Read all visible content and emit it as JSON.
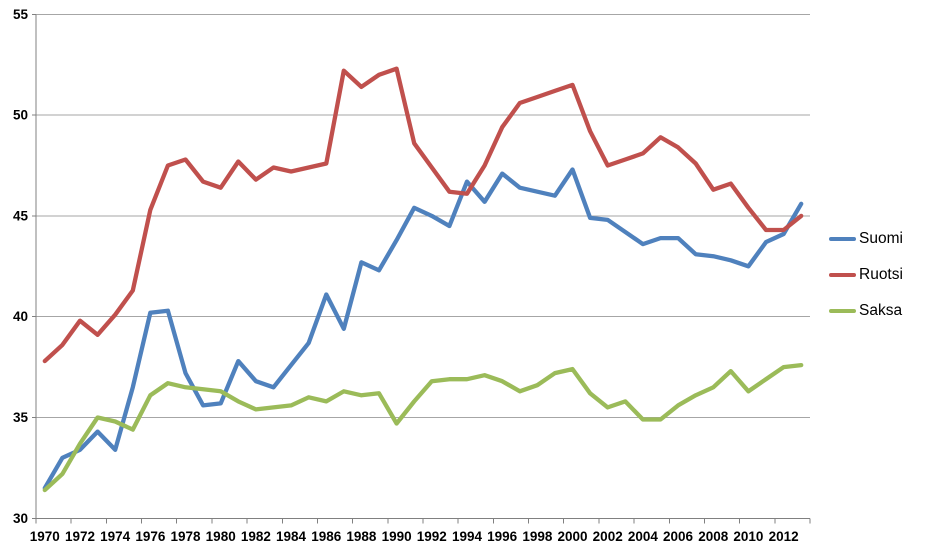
{
  "chart_data": {
    "type": "line",
    "title": "",
    "xlabel": "",
    "ylabel": "",
    "ylim": [
      30,
      55
    ],
    "y_tick_step": 5,
    "x_label_interval": 2,
    "grid": true,
    "legend_position": "right",
    "axis_color": "#808080",
    "gridline_color": "#A6A6A6",
    "categories": [
      1970,
      1971,
      1972,
      1973,
      1974,
      1975,
      1976,
      1977,
      1978,
      1979,
      1980,
      1981,
      1982,
      1983,
      1984,
      1985,
      1986,
      1987,
      1988,
      1989,
      1990,
      1991,
      1992,
      1993,
      1994,
      1995,
      1996,
      1997,
      1998,
      1999,
      2000,
      2001,
      2002,
      2003,
      2004,
      2005,
      2006,
      2007,
      2008,
      2009,
      2010,
      2011,
      2012,
      2013
    ],
    "series": [
      {
        "name": "Suomi",
        "color": "#4F81BD",
        "values": [
          31.5,
          33.0,
          33.4,
          34.3,
          33.4,
          36.5,
          40.2,
          40.3,
          37.2,
          35.6,
          35.7,
          37.8,
          36.8,
          36.5,
          37.6,
          38.7,
          41.1,
          39.4,
          42.7,
          42.3,
          43.8,
          45.4,
          45.0,
          44.5,
          46.7,
          45.7,
          47.1,
          46.4,
          46.2,
          46.0,
          47.3,
          44.9,
          44.8,
          44.2,
          43.6,
          43.9,
          43.9,
          43.1,
          43.0,
          42.8,
          42.5,
          43.7,
          44.1,
          45.6
        ]
      },
      {
        "name": "Ruotsi",
        "color": "#C0504D",
        "values": [
          37.8,
          38.6,
          39.8,
          39.1,
          40.1,
          41.3,
          45.3,
          47.5,
          47.8,
          46.7,
          46.4,
          47.7,
          46.8,
          47.4,
          47.2,
          47.4,
          47.6,
          52.2,
          51.4,
          52.0,
          52.3,
          48.6,
          47.4,
          46.2,
          46.1,
          47.5,
          49.4,
          50.6,
          50.9,
          51.2,
          51.5,
          49.2,
          47.5,
          47.8,
          48.1,
          48.9,
          48.4,
          47.6,
          46.3,
          46.6,
          45.4,
          44.3,
          44.3,
          45.0
        ]
      },
      {
        "name": "Saksa",
        "color": "#9BBB59",
        "values": [
          31.4,
          32.2,
          33.7,
          35.0,
          34.8,
          34.4,
          36.1,
          36.7,
          36.5,
          36.4,
          36.3,
          35.8,
          35.4,
          35.5,
          35.6,
          36.0,
          35.8,
          36.3,
          36.1,
          36.2,
          34.7,
          35.8,
          36.8,
          36.9,
          36.9,
          37.1,
          36.8,
          36.3,
          36.6,
          37.2,
          37.4,
          36.2,
          35.5,
          35.8,
          34.9,
          34.9,
          35.6,
          36.1,
          36.5,
          37.3,
          36.3,
          36.9,
          37.5,
          37.6
        ]
      }
    ]
  }
}
